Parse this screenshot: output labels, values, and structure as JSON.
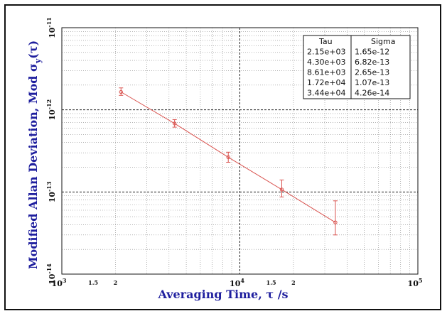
{
  "chart_data": {
    "type": "line",
    "xscale": "log",
    "yscale": "log",
    "xlabel": "Averaging Time, τ /s",
    "ylabel": "Modified Allan Deviation, Mod σ_y(τ)",
    "ylabel_main": "Modified Allan Deviation, Mod σ",
    "ylabel_sub": "y",
    "ylabel_tail": "(τ)",
    "xlim": [
      1000,
      100000
    ],
    "ylim": [
      1e-14,
      1e-11
    ],
    "grid": true,
    "x_ticks": [
      {
        "value": 1000,
        "base": "10",
        "exp": "3"
      },
      {
        "value": 10000,
        "base": "10",
        "exp": "4"
      },
      {
        "value": 100000,
        "base": "10",
        "exp": "5"
      }
    ],
    "x_minor_ticks": [
      {
        "value": 1500,
        "label": "1.5"
      },
      {
        "value": 2000,
        "label": "2"
      },
      {
        "value": 15000,
        "label": "1.5"
      },
      {
        "value": 20000,
        "label": "2"
      }
    ],
    "y_ticks": [
      {
        "value": 1e-11,
        "base": "10",
        "exp": "-11"
      },
      {
        "value": 1e-12,
        "base": "10",
        "exp": "-12"
      },
      {
        "value": 1e-13,
        "base": "10",
        "exp": "-13"
      },
      {
        "value": 1e-14,
        "base": "10",
        "exp": "-14"
      }
    ],
    "series": [
      {
        "x": [
          2150,
          4300,
          8610,
          17200,
          34400
        ],
        "y": [
          1.65e-12,
          6.82e-13,
          2.65e-13,
          1.07e-13,
          4.26e-14
        ],
        "err_low": [
          1.5e-12,
          6.15e-13,
          2.3e-13,
          8.7e-14,
          3e-14
        ],
        "err_high": [
          1.85e-12,
          7.6e-13,
          3.05e-13,
          1.4e-13,
          7.8e-14
        ],
        "color": "#d9534f"
      }
    ],
    "legend": {
      "position": "top-right",
      "headers": [
        "Tau",
        "Sigma"
      ],
      "rows": [
        [
          "2.15e+03",
          "1.65e-12"
        ],
        [
          "4.30e+03",
          "6.82e-13"
        ],
        [
          "8.61e+03",
          "2.65e-13"
        ],
        [
          "1.72e+04",
          "1.07e-13"
        ],
        [
          "3.44e+04",
          "4.26e-14"
        ]
      ]
    }
  }
}
